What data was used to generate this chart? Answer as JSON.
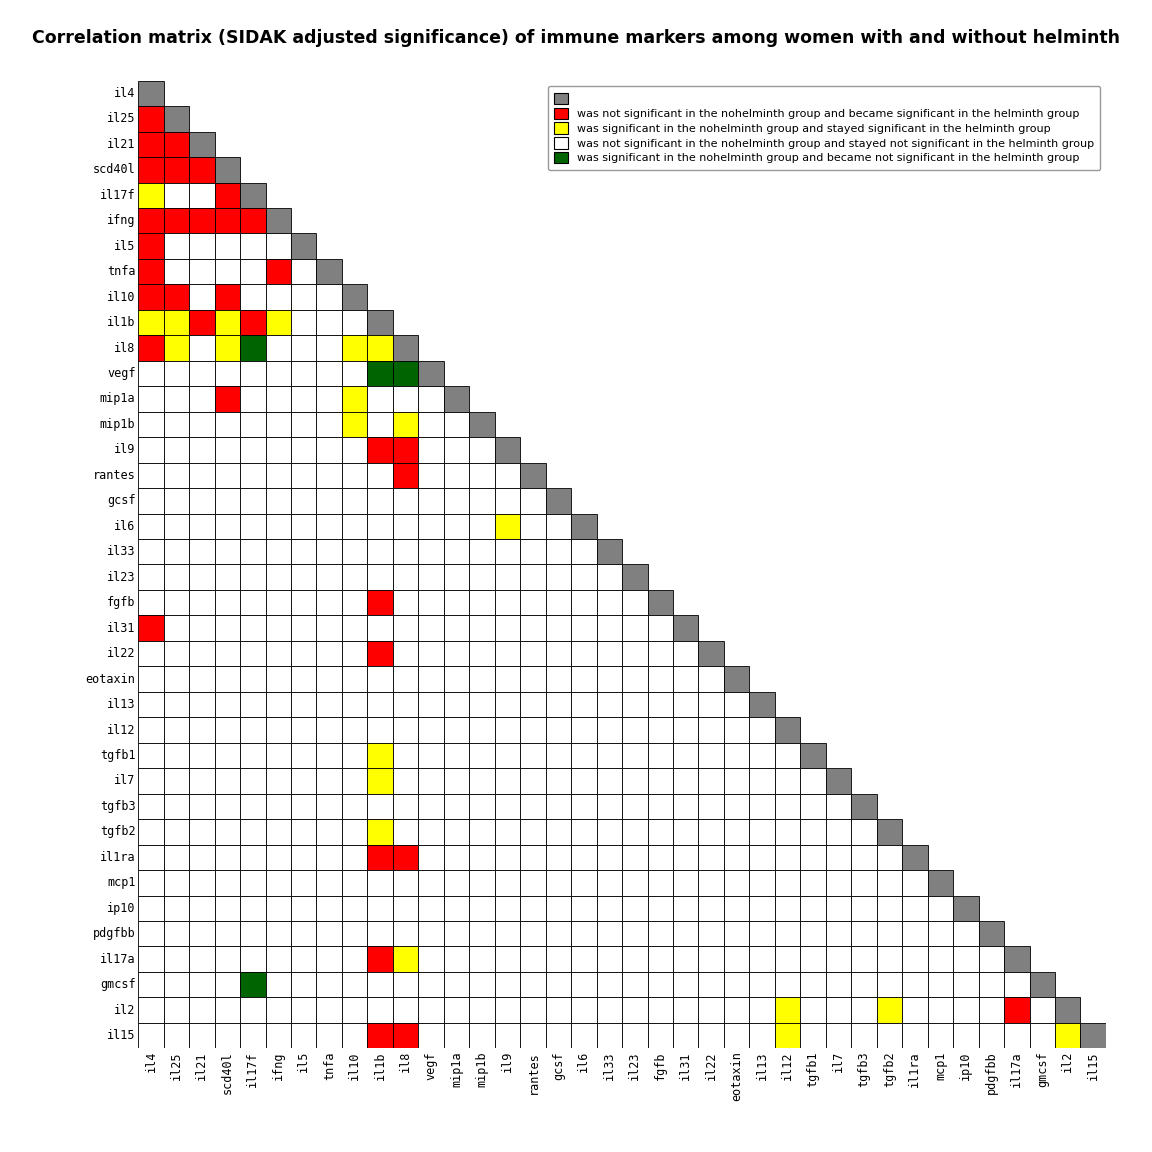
{
  "title": "Correlation matrix (SIDAK adjusted significance) of immune markers among women with and without helminth",
  "labels": [
    "il4",
    "il25",
    "il21",
    "scd40l",
    "il17f",
    "ifng",
    "il5",
    "tnfa",
    "il10",
    "il1b",
    "il8",
    "vegf",
    "mip1a",
    "mip1b",
    "il9",
    "rantes",
    "gcsf",
    "il6",
    "il33",
    "il23",
    "fgfb",
    "il31",
    "il22",
    "eotaxin",
    "il13",
    "il12",
    "tgfb1",
    "il7",
    "tgfb3",
    "tgfb2",
    "il1ra",
    "mcp1",
    "ip10",
    "pdgfbb",
    "il17a",
    "gmcsf",
    "il2",
    "il15"
  ],
  "legend": [
    {
      "color": "#808080",
      "label": ""
    },
    {
      "color": "#FF0000",
      "label": "was not significant in the nohelminth group and became significant in the helminth group"
    },
    {
      "color": "#FFFF00",
      "label": "was significant in the nohelminth group and stayed significant in the helminth group"
    },
    {
      "color": "#FFFFFF",
      "label": "was not significant in the nohelminth group and stayed not significant in the helminth group"
    },
    {
      "color": "#006400",
      "label": "was significant in the nohelminth group and became not significant in the helminth group"
    }
  ],
  "matrix_colors": [
    [
      "G",
      "W",
      "W",
      "W",
      "W",
      "W",
      "W",
      "W",
      "W",
      "W",
      "W",
      "W",
      "W",
      "W",
      "W",
      "W",
      "W",
      "W",
      "W",
      "W",
      "W",
      "W",
      "W",
      "W",
      "W",
      "W",
      "W",
      "W",
      "W",
      "W",
      "W",
      "W",
      "W",
      "W",
      "W",
      "W",
      "W",
      "W"
    ],
    [
      "R",
      "G",
      "W",
      "W",
      "W",
      "W",
      "W",
      "W",
      "W",
      "W",
      "W",
      "W",
      "W",
      "W",
      "W",
      "W",
      "W",
      "W",
      "W",
      "W",
      "W",
      "W",
      "W",
      "W",
      "W",
      "W",
      "W",
      "W",
      "W",
      "W",
      "W",
      "W",
      "W",
      "W",
      "W",
      "W",
      "W",
      "W"
    ],
    [
      "R",
      "R",
      "G",
      "W",
      "W",
      "W",
      "W",
      "W",
      "W",
      "W",
      "W",
      "W",
      "W",
      "W",
      "W",
      "W",
      "W",
      "W",
      "W",
      "W",
      "W",
      "W",
      "W",
      "W",
      "W",
      "W",
      "W",
      "W",
      "W",
      "W",
      "W",
      "W",
      "W",
      "W",
      "W",
      "W",
      "W",
      "W"
    ],
    [
      "R",
      "R",
      "R",
      "G",
      "W",
      "W",
      "W",
      "W",
      "W",
      "W",
      "W",
      "W",
      "W",
      "W",
      "W",
      "W",
      "W",
      "W",
      "W",
      "W",
      "W",
      "W",
      "W",
      "W",
      "W",
      "W",
      "W",
      "W",
      "W",
      "W",
      "W",
      "W",
      "W",
      "W",
      "W",
      "W",
      "W",
      "W"
    ],
    [
      "Y",
      "W",
      "W",
      "R",
      "G",
      "W",
      "W",
      "W",
      "W",
      "W",
      "W",
      "W",
      "W",
      "W",
      "W",
      "W",
      "W",
      "W",
      "W",
      "W",
      "W",
      "W",
      "W",
      "W",
      "W",
      "W",
      "W",
      "W",
      "W",
      "W",
      "W",
      "W",
      "W",
      "W",
      "W",
      "W",
      "W",
      "W"
    ],
    [
      "R",
      "R",
      "R",
      "R",
      "R",
      "G",
      "W",
      "W",
      "W",
      "W",
      "W",
      "W",
      "W",
      "W",
      "W",
      "W",
      "W",
      "W",
      "W",
      "W",
      "W",
      "W",
      "W",
      "W",
      "W",
      "W",
      "W",
      "W",
      "W",
      "W",
      "W",
      "W",
      "W",
      "W",
      "W",
      "W",
      "W",
      "W"
    ],
    [
      "R",
      "W",
      "W",
      "W",
      "W",
      "W",
      "G",
      "W",
      "W",
      "W",
      "W",
      "W",
      "W",
      "W",
      "W",
      "W",
      "W",
      "W",
      "W",
      "W",
      "W",
      "W",
      "W",
      "W",
      "W",
      "W",
      "W",
      "W",
      "W",
      "W",
      "W",
      "W",
      "W",
      "W",
      "W",
      "W",
      "W",
      "W"
    ],
    [
      "R",
      "W",
      "W",
      "W",
      "W",
      "R",
      "W",
      "G",
      "W",
      "W",
      "W",
      "W",
      "W",
      "W",
      "W",
      "W",
      "W",
      "W",
      "W",
      "W",
      "W",
      "W",
      "W",
      "W",
      "W",
      "W",
      "W",
      "W",
      "W",
      "W",
      "W",
      "W",
      "W",
      "W",
      "W",
      "W",
      "W",
      "W"
    ],
    [
      "R",
      "R",
      "W",
      "R",
      "W",
      "W",
      "W",
      "W",
      "G",
      "W",
      "W",
      "W",
      "W",
      "W",
      "W",
      "W",
      "W",
      "W",
      "W",
      "W",
      "W",
      "W",
      "W",
      "W",
      "W",
      "W",
      "W",
      "W",
      "W",
      "W",
      "W",
      "W",
      "W",
      "W",
      "W",
      "W",
      "W",
      "W"
    ],
    [
      "Y",
      "Y",
      "R",
      "Y",
      "R",
      "Y",
      "W",
      "W",
      "W",
      "G",
      "W",
      "W",
      "W",
      "W",
      "W",
      "W",
      "W",
      "W",
      "W",
      "W",
      "W",
      "W",
      "W",
      "W",
      "W",
      "W",
      "W",
      "W",
      "W",
      "W",
      "W",
      "W",
      "W",
      "W",
      "W",
      "W",
      "W",
      "W"
    ],
    [
      "R",
      "Y",
      "W",
      "Y",
      "DG",
      "W",
      "W",
      "W",
      "Y",
      "Y",
      "G",
      "W",
      "W",
      "W",
      "W",
      "W",
      "W",
      "W",
      "W",
      "W",
      "W",
      "W",
      "W",
      "W",
      "W",
      "W",
      "W",
      "W",
      "W",
      "W",
      "W",
      "W",
      "W",
      "W",
      "W",
      "W",
      "W",
      "W"
    ],
    [
      "W",
      "W",
      "W",
      "W",
      "W",
      "W",
      "W",
      "W",
      "W",
      "DG",
      "DG",
      "G",
      "W",
      "W",
      "W",
      "W",
      "W",
      "W",
      "W",
      "W",
      "W",
      "W",
      "W",
      "W",
      "W",
      "W",
      "W",
      "W",
      "W",
      "W",
      "W",
      "W",
      "W",
      "W",
      "W",
      "W",
      "W",
      "W"
    ],
    [
      "W",
      "W",
      "W",
      "R",
      "W",
      "W",
      "W",
      "W",
      "Y",
      "W",
      "W",
      "W",
      "G",
      "W",
      "W",
      "W",
      "W",
      "W",
      "W",
      "W",
      "W",
      "W",
      "W",
      "W",
      "W",
      "W",
      "W",
      "W",
      "W",
      "W",
      "W",
      "W",
      "W",
      "W",
      "W",
      "W",
      "W",
      "W"
    ],
    [
      "W",
      "W",
      "W",
      "W",
      "W",
      "W",
      "W",
      "W",
      "Y",
      "W",
      "Y",
      "W",
      "W",
      "G",
      "W",
      "W",
      "W",
      "W",
      "W",
      "W",
      "W",
      "W",
      "W",
      "W",
      "W",
      "W",
      "W",
      "W",
      "W",
      "W",
      "W",
      "W",
      "W",
      "W",
      "W",
      "W",
      "W",
      "W"
    ],
    [
      "W",
      "W",
      "W",
      "W",
      "W",
      "W",
      "W",
      "W",
      "W",
      "R",
      "R",
      "W",
      "W",
      "W",
      "G",
      "W",
      "W",
      "W",
      "W",
      "W",
      "W",
      "W",
      "W",
      "W",
      "W",
      "W",
      "W",
      "W",
      "W",
      "W",
      "W",
      "W",
      "W",
      "W",
      "W",
      "W",
      "W",
      "W"
    ],
    [
      "W",
      "W",
      "W",
      "W",
      "W",
      "W",
      "W",
      "W",
      "W",
      "W",
      "R",
      "W",
      "W",
      "W",
      "W",
      "G",
      "W",
      "W",
      "W",
      "W",
      "W",
      "W",
      "W",
      "W",
      "W",
      "W",
      "W",
      "W",
      "W",
      "W",
      "W",
      "W",
      "W",
      "W",
      "W",
      "W",
      "W",
      "W"
    ],
    [
      "W",
      "W",
      "W",
      "W",
      "W",
      "W",
      "W",
      "W",
      "W",
      "W",
      "W",
      "W",
      "W",
      "W",
      "W",
      "W",
      "G",
      "W",
      "W",
      "W",
      "W",
      "W",
      "W",
      "W",
      "W",
      "W",
      "W",
      "W",
      "W",
      "W",
      "W",
      "W",
      "W",
      "W",
      "W",
      "W",
      "W",
      "W"
    ],
    [
      "W",
      "W",
      "W",
      "W",
      "W",
      "W",
      "W",
      "W",
      "W",
      "W",
      "W",
      "W",
      "W",
      "W",
      "Y",
      "W",
      "W",
      "G",
      "W",
      "W",
      "W",
      "W",
      "W",
      "W",
      "W",
      "W",
      "W",
      "W",
      "W",
      "W",
      "W",
      "W",
      "W",
      "W",
      "W",
      "W",
      "W",
      "W"
    ],
    [
      "W",
      "W",
      "W",
      "W",
      "W",
      "W",
      "W",
      "W",
      "W",
      "W",
      "W",
      "W",
      "W",
      "W",
      "W",
      "W",
      "W",
      "W",
      "G",
      "W",
      "W",
      "W",
      "W",
      "W",
      "W",
      "W",
      "W",
      "W",
      "W",
      "W",
      "W",
      "W",
      "W",
      "W",
      "W",
      "W",
      "W",
      "W"
    ],
    [
      "W",
      "W",
      "W",
      "W",
      "W",
      "W",
      "W",
      "W",
      "W",
      "W",
      "W",
      "W",
      "W",
      "W",
      "W",
      "W",
      "W",
      "W",
      "W",
      "G",
      "W",
      "W",
      "W",
      "W",
      "W",
      "W",
      "W",
      "W",
      "W",
      "W",
      "W",
      "W",
      "W",
      "W",
      "W",
      "W",
      "W",
      "W"
    ],
    [
      "W",
      "W",
      "W",
      "W",
      "W",
      "W",
      "W",
      "W",
      "W",
      "R",
      "W",
      "W",
      "W",
      "W",
      "W",
      "W",
      "W",
      "W",
      "W",
      "W",
      "G",
      "W",
      "W",
      "W",
      "W",
      "W",
      "W",
      "W",
      "W",
      "W",
      "W",
      "W",
      "W",
      "W",
      "W",
      "W",
      "W",
      "W"
    ],
    [
      "R",
      "W",
      "W",
      "W",
      "W",
      "W",
      "W",
      "W",
      "W",
      "W",
      "W",
      "W",
      "W",
      "W",
      "W",
      "W",
      "W",
      "W",
      "W",
      "W",
      "W",
      "G",
      "W",
      "W",
      "W",
      "W",
      "W",
      "W",
      "W",
      "W",
      "W",
      "W",
      "W",
      "W",
      "W",
      "W",
      "W",
      "W"
    ],
    [
      "W",
      "W",
      "W",
      "W",
      "W",
      "W",
      "W",
      "W",
      "W",
      "R",
      "W",
      "W",
      "W",
      "W",
      "W",
      "W",
      "W",
      "W",
      "W",
      "W",
      "W",
      "W",
      "G",
      "W",
      "W",
      "W",
      "W",
      "W",
      "W",
      "W",
      "W",
      "W",
      "W",
      "W",
      "W",
      "W",
      "W",
      "W"
    ],
    [
      "W",
      "W",
      "W",
      "W",
      "W",
      "W",
      "W",
      "W",
      "W",
      "W",
      "W",
      "W",
      "W",
      "W",
      "W",
      "W",
      "W",
      "W",
      "W",
      "W",
      "W",
      "W",
      "W",
      "G",
      "W",
      "W",
      "W",
      "W",
      "W",
      "W",
      "W",
      "W",
      "W",
      "W",
      "W",
      "W",
      "W",
      "W"
    ],
    [
      "W",
      "W",
      "W",
      "W",
      "W",
      "W",
      "W",
      "W",
      "W",
      "W",
      "W",
      "W",
      "W",
      "W",
      "W",
      "W",
      "W",
      "W",
      "W",
      "W",
      "W",
      "W",
      "W",
      "W",
      "G",
      "W",
      "W",
      "W",
      "W",
      "W",
      "W",
      "W",
      "W",
      "W",
      "W",
      "W",
      "W",
      "W"
    ],
    [
      "W",
      "W",
      "W",
      "W",
      "W",
      "W",
      "W",
      "W",
      "W",
      "W",
      "W",
      "W",
      "W",
      "W",
      "W",
      "W",
      "W",
      "W",
      "W",
      "W",
      "W",
      "W",
      "W",
      "W",
      "W",
      "G",
      "W",
      "W",
      "W",
      "W",
      "W",
      "W",
      "W",
      "W",
      "W",
      "W",
      "W",
      "W"
    ],
    [
      "W",
      "W",
      "W",
      "W",
      "W",
      "W",
      "W",
      "W",
      "W",
      "Y",
      "W",
      "W",
      "W",
      "W",
      "W",
      "W",
      "W",
      "W",
      "W",
      "W",
      "W",
      "W",
      "W",
      "W",
      "W",
      "W",
      "G",
      "W",
      "W",
      "W",
      "W",
      "W",
      "W",
      "W",
      "W",
      "W",
      "W",
      "W"
    ],
    [
      "W",
      "W",
      "W",
      "W",
      "W",
      "W",
      "W",
      "W",
      "W",
      "Y",
      "W",
      "W",
      "W",
      "W",
      "W",
      "W",
      "W",
      "W",
      "W",
      "W",
      "W",
      "W",
      "W",
      "W",
      "W",
      "W",
      "W",
      "G",
      "W",
      "W",
      "W",
      "W",
      "W",
      "W",
      "W",
      "W",
      "W",
      "W"
    ],
    [
      "W",
      "W",
      "W",
      "W",
      "W",
      "W",
      "W",
      "W",
      "W",
      "W",
      "W",
      "W",
      "W",
      "W",
      "W",
      "W",
      "W",
      "W",
      "W",
      "W",
      "W",
      "W",
      "W",
      "W",
      "W",
      "W",
      "W",
      "W",
      "G",
      "W",
      "W",
      "W",
      "W",
      "W",
      "W",
      "W",
      "W",
      "W"
    ],
    [
      "W",
      "W",
      "W",
      "W",
      "W",
      "W",
      "W",
      "W",
      "W",
      "Y",
      "W",
      "W",
      "W",
      "W",
      "W",
      "W",
      "W",
      "W",
      "W",
      "W",
      "W",
      "W",
      "W",
      "W",
      "W",
      "W",
      "W",
      "W",
      "W",
      "G",
      "W",
      "W",
      "W",
      "W",
      "W",
      "W",
      "W",
      "W"
    ],
    [
      "W",
      "W",
      "W",
      "W",
      "W",
      "W",
      "W",
      "W",
      "W",
      "R",
      "R",
      "W",
      "W",
      "W",
      "W",
      "W",
      "W",
      "W",
      "W",
      "W",
      "W",
      "W",
      "W",
      "W",
      "W",
      "W",
      "W",
      "W",
      "W",
      "W",
      "G",
      "W",
      "W",
      "W",
      "W",
      "W",
      "W",
      "W"
    ],
    [
      "W",
      "W",
      "W",
      "W",
      "W",
      "W",
      "W",
      "W",
      "W",
      "W",
      "W",
      "W",
      "W",
      "W",
      "W",
      "W",
      "W",
      "W",
      "W",
      "W",
      "W",
      "W",
      "W",
      "W",
      "W",
      "W",
      "W",
      "W",
      "W",
      "W",
      "W",
      "G",
      "W",
      "W",
      "W",
      "W",
      "W",
      "W"
    ],
    [
      "W",
      "W",
      "W",
      "W",
      "W",
      "W",
      "W",
      "W",
      "W",
      "W",
      "W",
      "W",
      "W",
      "W",
      "W",
      "W",
      "W",
      "W",
      "W",
      "W",
      "W",
      "W",
      "W",
      "W",
      "W",
      "W",
      "W",
      "W",
      "W",
      "W",
      "W",
      "W",
      "G",
      "W",
      "W",
      "W",
      "W",
      "W"
    ],
    [
      "W",
      "W",
      "W",
      "W",
      "W",
      "W",
      "W",
      "W",
      "W",
      "W",
      "W",
      "W",
      "W",
      "W",
      "W",
      "W",
      "W",
      "W",
      "W",
      "W",
      "W",
      "W",
      "W",
      "W",
      "W",
      "W",
      "W",
      "W",
      "W",
      "W",
      "W",
      "W",
      "W",
      "G",
      "W",
      "W",
      "W",
      "W"
    ],
    [
      "W",
      "W",
      "W",
      "W",
      "W",
      "W",
      "W",
      "W",
      "W",
      "R",
      "Y",
      "W",
      "W",
      "W",
      "W",
      "W",
      "W",
      "W",
      "W",
      "W",
      "W",
      "W",
      "W",
      "W",
      "W",
      "W",
      "W",
      "W",
      "W",
      "W",
      "W",
      "W",
      "W",
      "W",
      "G",
      "W",
      "W",
      "W"
    ],
    [
      "W",
      "W",
      "W",
      "W",
      "DG",
      "W",
      "W",
      "W",
      "W",
      "W",
      "W",
      "W",
      "W",
      "W",
      "W",
      "W",
      "W",
      "W",
      "W",
      "W",
      "W",
      "W",
      "W",
      "W",
      "W",
      "W",
      "W",
      "W",
      "W",
      "W",
      "W",
      "W",
      "W",
      "W",
      "W",
      "G",
      "W",
      "W"
    ],
    [
      "W",
      "W",
      "W",
      "W",
      "W",
      "W",
      "W",
      "W",
      "W",
      "W",
      "W",
      "W",
      "W",
      "W",
      "W",
      "W",
      "W",
      "W",
      "W",
      "W",
      "W",
      "W",
      "W",
      "W",
      "W",
      "Y",
      "W",
      "W",
      "W",
      "Y",
      "W",
      "W",
      "W",
      "W",
      "R",
      "W",
      "G",
      "W"
    ],
    [
      "W",
      "W",
      "W",
      "W",
      "W",
      "W",
      "W",
      "W",
      "W",
      "R",
      "R",
      "W",
      "W",
      "W",
      "W",
      "W",
      "W",
      "W",
      "W",
      "W",
      "W",
      "W",
      "W",
      "W",
      "W",
      "Y",
      "W",
      "W",
      "W",
      "W",
      "W",
      "W",
      "W",
      "W",
      "W",
      "W",
      "Y",
      "G"
    ]
  ],
  "colors": {
    "G": "#808080",
    "R": "#FF0000",
    "Y": "#FFFF00",
    "W": "#FFFFFF",
    "DG": "#006400"
  }
}
